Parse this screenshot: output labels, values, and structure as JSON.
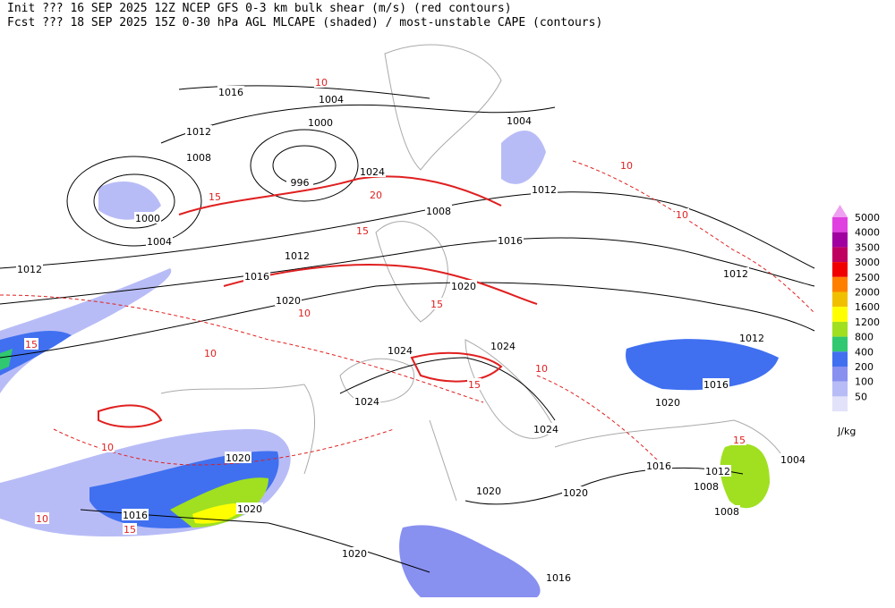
{
  "header": {
    "line1": "Init  ??? 16 SEP 2025 12Z  NCEP GFS 0-3 km bulk shear (m/s) (red contours)",
    "line2": "Fcst ??? 18 SEP 2025 15Z  0-30 hPa AGL MLCAPE (shaded) / most-unstable CAPE (contours)"
  },
  "colorbar": {
    "top_color": "#f0a0f0",
    "levels": [
      "5000",
      "4000",
      "3500",
      "3000",
      "2500",
      "2000",
      "1600",
      "1200",
      "800",
      "400",
      "200",
      "100",
      "50"
    ],
    "colors": [
      "#e040e0",
      "#a000a0",
      "#c00060",
      "#f00000",
      "#ff8000",
      "#f0c000",
      "#ffff00",
      "#a0e020",
      "#30c870",
      "#4070f0",
      "#8890f0",
      "#b8bcf6",
      "#e2e2fa"
    ],
    "unit": "J/kg"
  },
  "isobar_labels": [
    "1016",
    "1004",
    "1000",
    "1012",
    "1008",
    "996",
    "1024",
    "1000",
    "1004",
    "1012",
    "1012",
    "1016",
    "1020",
    "1020",
    "1004",
    "1012",
    "1008",
    "1016",
    "1012",
    "1024",
    "1024",
    "1024",
    "1024",
    "1020",
    "1016",
    "1012",
    "1020",
    "1020",
    "1016",
    "1020",
    "1020",
    "1020",
    "1016",
    "1016",
    "1012",
    "1008",
    "1008",
    "1004"
  ],
  "shear_labels": [
    "10",
    "15",
    "10",
    "15",
    "20",
    "15",
    "10",
    "15",
    "10",
    "15",
    "10",
    "15",
    "10",
    "15",
    "10",
    "10"
  ]
}
